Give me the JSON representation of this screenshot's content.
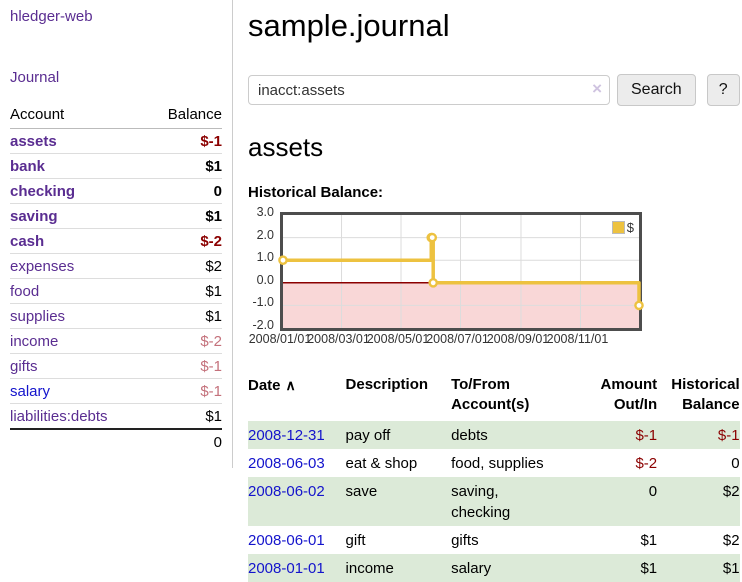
{
  "app": {
    "brand": "hledger-web"
  },
  "sidebar": {
    "journal_link": "Journal",
    "accounts": {
      "col_account": "Account",
      "col_balance": "Balance",
      "rows": [
        {
          "name": "assets",
          "balance": "$-1"
        },
        {
          "name": "bank",
          "balance": "$1"
        },
        {
          "name": "checking",
          "balance": "0"
        },
        {
          "name": "saving",
          "balance": "$1"
        },
        {
          "name": "cash",
          "balance": "$-2"
        },
        {
          "name": "expenses",
          "balance": "$2"
        },
        {
          "name": "food",
          "balance": "$1"
        },
        {
          "name": "supplies",
          "balance": "$1"
        },
        {
          "name": "income",
          "balance": "$-2"
        },
        {
          "name": "gifts",
          "balance": "$-1"
        },
        {
          "name": "salary",
          "balance": "$-1"
        },
        {
          "name": "liabilities:debts",
          "balance": "$1"
        }
      ],
      "total": "0"
    }
  },
  "main": {
    "title": "sample.journal",
    "search": {
      "value": "inacct:assets",
      "clear_icon": "×",
      "search_button": "Search",
      "help_button": "?"
    },
    "account_title": "assets",
    "section_label": "Historical Balance:"
  },
  "chart_data": {
    "type": "line",
    "step": true,
    "title": "Historical Balance",
    "series": [
      {
        "name": "$",
        "color": "#edc240",
        "points": [
          [
            "2008-01-01",
            1
          ],
          [
            "2008-06-01",
            2
          ],
          [
            "2008-06-02",
            2
          ],
          [
            "2008-06-03",
            0
          ],
          [
            "2008-12-31",
            -1
          ]
        ]
      }
    ],
    "x_range": [
      "2008-01-01",
      "2008-12-31"
    ],
    "ylim": [
      -2,
      3
    ],
    "y_ticks": [
      3,
      2,
      1,
      0,
      -1,
      -2
    ],
    "y_tick_labels": [
      "3.0",
      "2.0",
      "1.0",
      "0.0",
      "-1.0",
      "-2.0"
    ],
    "x_ticks": [
      "2008-01-01",
      "2008-03-01",
      "2008-05-01",
      "2008-07-01",
      "2008-09-01",
      "2008-11-01"
    ],
    "x_tick_labels": [
      "2008/01/01",
      "2008/03/01",
      "2008/05/01",
      "2008/07/01",
      "2008/09/01",
      "2008/11/01"
    ],
    "legend": {
      "label": "$",
      "position": "top-right"
    },
    "grid": true,
    "colors": {
      "line": "#edc240",
      "negative_region": "#f9d7d7",
      "zero_line": "#8b0000",
      "gridline": "#dcdcdc",
      "border": "#4d4d4d"
    }
  },
  "register_table": {
    "sort_icon": "∧",
    "headers": [
      "Date",
      "Description",
      "To/From Account(s)",
      "Amount Out/In",
      "Historical Balance"
    ],
    "rows": [
      {
        "date": "2008-12-31",
        "description": "pay off",
        "accounts": "debts",
        "amount": "$-1",
        "balance": "$-1"
      },
      {
        "date": "2008-06-03",
        "description": "eat & shop",
        "accounts": "food, supplies",
        "amount": "$-2",
        "balance": "0"
      },
      {
        "date": "2008-06-02",
        "description": "save",
        "accounts": "saving,\nchecking",
        "amount": "0",
        "balance": "$2"
      },
      {
        "date": "2008-06-01",
        "description": "gift",
        "accounts": "gifts",
        "amount": "$1",
        "balance": "$2"
      },
      {
        "date": "2008-01-01",
        "description": "income",
        "accounts": "salary",
        "amount": "$1",
        "balance": "$1"
      }
    ]
  },
  "colors": {
    "link_purple": "#5a2d91",
    "link_blue": "#1414cc",
    "negative_strong": "#8b0000",
    "negative_soft": "#c4717b",
    "row_stripe_green": "#dcead8"
  }
}
